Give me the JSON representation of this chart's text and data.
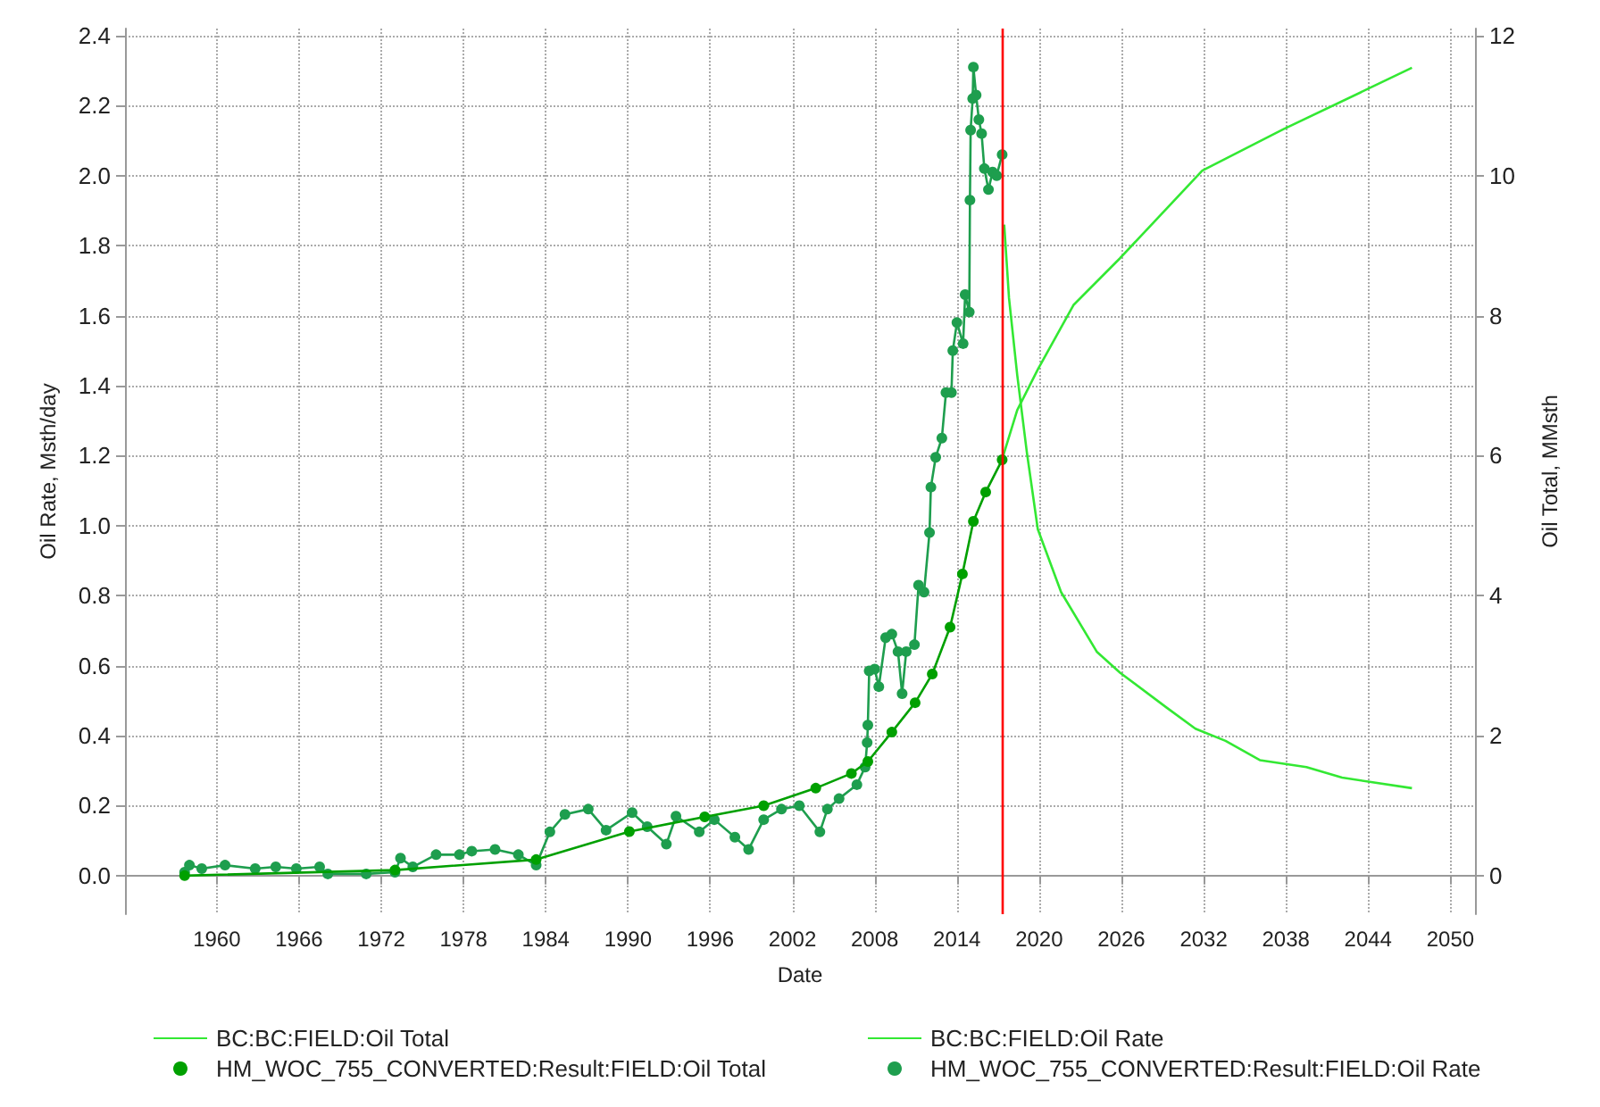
{
  "chart_data": {
    "type": "line",
    "xlabel": "Date",
    "ylabel": "Oil Rate, Msth/day",
    "y2label": "Oil Total, MMsth",
    "xlim": [
      1953.3,
      2051.8
    ],
    "xticks": [
      1960,
      1966,
      1972,
      1978,
      1984,
      1990,
      1996,
      2002,
      2008,
      2014,
      2020,
      2026,
      2032,
      2038,
      2044,
      2050
    ],
    "ylim": [
      -0.11,
      2.42
    ],
    "yticks": [
      {
        "value": 0,
        "label": "0.0"
      },
      0.2,
      0.4,
      0.6,
      0.8,
      {
        "value": 1,
        "label": "1.0"
      },
      1.2,
      1.4,
      1.6,
      1.8,
      {
        "value": 2,
        "label": "2.0"
      },
      2.2,
      2.4
    ],
    "y2lim": [
      -0.55,
      12.1
    ],
    "y2ticks": [
      0,
      2,
      4,
      6,
      8,
      10,
      12
    ],
    "grid": true,
    "legend": "bottom",
    "ref_lines": [
      {
        "axis": "x",
        "value": 2017.35,
        "color": "#ff0000"
      }
    ],
    "series": [
      {
        "name": "BC:BC:FIELD:Oil Total",
        "color": "#33e833",
        "axis": "y2",
        "marker": "none",
        "x": [
          2017.35,
          2018.4,
          2019.9,
          2022.5,
          2025.9,
          2031.9,
          2037.8,
          2044.0,
          2047.2
        ],
        "values": [
          5.98,
          6.65,
          7.23,
          8.15,
          8.82,
          10.07,
          10.66,
          11.24,
          11.54
        ]
      },
      {
        "name": "BC:BC:FIELD:Oil Rate",
        "color": "#33e833",
        "marker": "none",
        "x": [
          2017.45,
          2017.8,
          2018.4,
          2019.1,
          2019.9,
          2021.6,
          2024.2,
          2025.9,
          2029.3,
          2031.4,
          2033.6,
          2036.1,
          2039.5,
          2042.1,
          2047.2
        ],
        "values": [
          1.86,
          1.65,
          1.43,
          1.21,
          0.99,
          0.81,
          0.64,
          0.58,
          0.48,
          0.42,
          0.385,
          0.33,
          0.31,
          0.28,
          0.25
        ]
      },
      {
        "name": "HM_WOC_755_CONVERTED:Result:FIELD:Oil Total",
        "color": "#00a000",
        "axis": "y2",
        "marker": "circle",
        "x": [
          1957.65,
          1973.0,
          1983.3,
          1990.1,
          1995.6,
          1999.9,
          2003.7,
          2006.3,
          2007.5,
          2009.25,
          2010.95,
          2012.2,
          2013.5,
          2014.4,
          2015.2,
          2016.1,
          2017.3
        ],
        "values": [
          0,
          0.08,
          0.23,
          0.63,
          0.84,
          1.0,
          1.25,
          1.46,
          1.63,
          2.05,
          2.47,
          2.88,
          3.55,
          4.31,
          5.06,
          5.48,
          5.94
        ]
      },
      {
        "name": "HM_WOC_755_CONVERTED:Result:FIELD:Oil Rate",
        "color": "#1e9e4e",
        "marker": "circle",
        "x": [
          1957.65,
          1958.0,
          1958.9,
          1960.6,
          1962.8,
          1964.3,
          1965.8,
          1967.5,
          1968.1,
          1970.9,
          1973.0,
          1973.4,
          1974.3,
          1976.0,
          1977.7,
          1978.6,
          1980.3,
          1982.0,
          1983.3,
          1984.3,
          1985.4,
          1987.1,
          1988.4,
          1990.3,
          1991.4,
          1992.8,
          1993.5,
          1995.2,
          1996.3,
          1997.8,
          1998.8,
          1999.9,
          2001.2,
          2002.5,
          2004.0,
          2004.55,
          2005.4,
          2006.7,
          2007.3,
          2007.45,
          2007.5,
          2007.6,
          2008.0,
          2008.3,
          2008.8,
          2009.25,
          2009.7,
          2010.0,
          2010.3,
          2010.9,
          2011.2,
          2011.6,
          2012.0,
          2012.1,
          2012.45,
          2012.9,
          2013.2,
          2013.6,
          2013.7,
          2014.0,
          2014.45,
          2014.6,
          2014.9,
          2014.95,
          2015.0,
          2015.15,
          2015.2,
          2015.4,
          2015.6,
          2015.8,
          2016.0,
          2016.3,
          2016.6,
          2016.9,
          2017.3
        ],
        "values": [
          0.01,
          0.03,
          0.02,
          0.03,
          0.02,
          0.025,
          0.02,
          0.025,
          0.005,
          0.005,
          0.01,
          0.05,
          0.025,
          0.06,
          0.06,
          0.07,
          0.075,
          0.06,
          0.03,
          0.125,
          0.175,
          0.19,
          0.13,
          0.18,
          0.14,
          0.09,
          0.17,
          0.125,
          0.16,
          0.11,
          0.075,
          0.16,
          0.19,
          0.2,
          0.125,
          0.19,
          0.22,
          0.26,
          0.31,
          0.38,
          0.43,
          0.585,
          0.59,
          0.54,
          0.68,
          0.69,
          0.64,
          0.52,
          0.64,
          0.66,
          0.83,
          0.81,
          0.98,
          1.11,
          1.195,
          1.25,
          1.38,
          1.38,
          1.5,
          1.58,
          1.52,
          1.66,
          1.61,
          1.93,
          2.13,
          2.22,
          2.31,
          2.23,
          2.16,
          2.12,
          2.02,
          1.96,
          2.01,
          2.0,
          2.06
        ]
      }
    ]
  }
}
